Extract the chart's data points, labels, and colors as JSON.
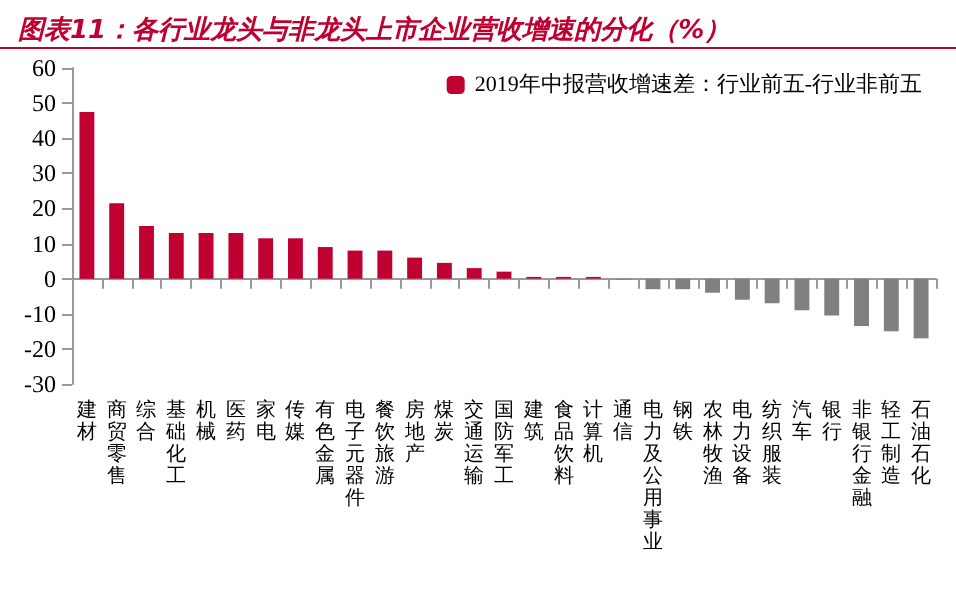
{
  "chart_data": {
    "type": "bar",
    "title": "图表11：各行业龙头与非龙头上市企业营收增速的分化（%）",
    "categories": [
      "建材",
      "商贸零售",
      "综合",
      "基础化工",
      "机械",
      "医药",
      "家电",
      "传媒",
      "有色金属",
      "电子元器件",
      "餐饮旅游",
      "房地产",
      "煤炭",
      "交通运输",
      "国防军工",
      "建筑",
      "食品饮料",
      "计算机",
      "通信",
      "电力及公用事业",
      "钢铁",
      "农林牧渔",
      "电力设备",
      "纺织服装",
      "汽车",
      "银行",
      "非银行金融",
      "轻工制造",
      "石油石化"
    ],
    "series": [
      {
        "name": "2019年中报营收增速差：行业前五-行业非前五",
        "color": "#c00030",
        "values": [
          47.5,
          21.5,
          15,
          13,
          13,
          13,
          11.5,
          11.5,
          9,
          8,
          8,
          6,
          4.5,
          3,
          2,
          0.5,
          0.5,
          0.5,
          -0.3,
          -3,
          -3,
          -4,
          -6,
          -7,
          -9,
          -10.5,
          -13.5,
          -15,
          -17
        ],
        "colors": [
          "#c00030",
          "#c00030",
          "#c00030",
          "#c00030",
          "#c00030",
          "#c00030",
          "#c00030",
          "#c00030",
          "#c00030",
          "#c00030",
          "#c00030",
          "#c00030",
          "#c00030",
          "#c00030",
          "#c00030",
          "#c00030",
          "#c00030",
          "#c00030",
          "#808080",
          "#808080",
          "#808080",
          "#808080",
          "#808080",
          "#808080",
          "#808080",
          "#808080",
          "#808080",
          "#808080",
          "#808080"
        ]
      }
    ],
    "ylim": [
      -30,
      60
    ],
    "yticks": [
      -30,
      -20,
      -10,
      0,
      10,
      20,
      30,
      40,
      50,
      60
    ],
    "legend": "top right"
  }
}
